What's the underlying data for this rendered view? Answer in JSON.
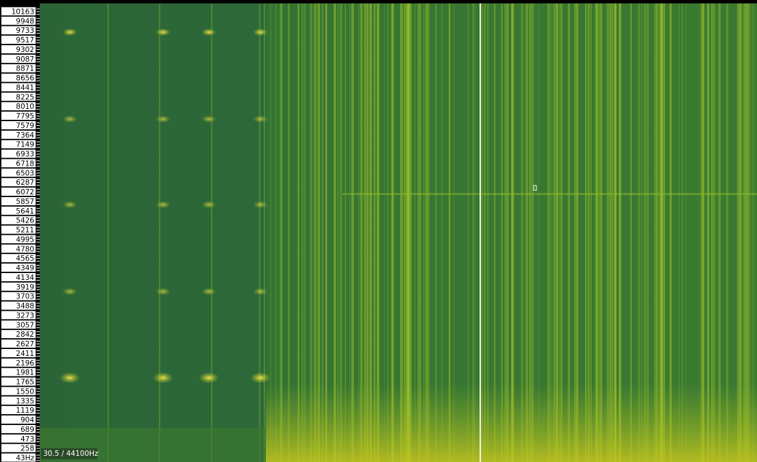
{
  "axis": {
    "labels": [
      "10163",
      "9948",
      "9733",
      "9517",
      "9302",
      "9087",
      "8871",
      "8656",
      "8441",
      "8225",
      "8010",
      "7795",
      "7579",
      "7364",
      "7149",
      "6933",
      "6718",
      "6503",
      "6287",
      "6072",
      "5857",
      "5641",
      "5426",
      "5211",
      "4995",
      "4780",
      "4565",
      "4349",
      "4134",
      "3919",
      "3703",
      "3488",
      "3273",
      "3057",
      "2842",
      "2627",
      "2411",
      "2196",
      "1981",
      "1765",
      "1550",
      "1335",
      "1119",
      "904",
      "689",
      "473",
      "258",
      "43Hz"
    ]
  },
  "status": "30.5 / 44100Hz"
}
